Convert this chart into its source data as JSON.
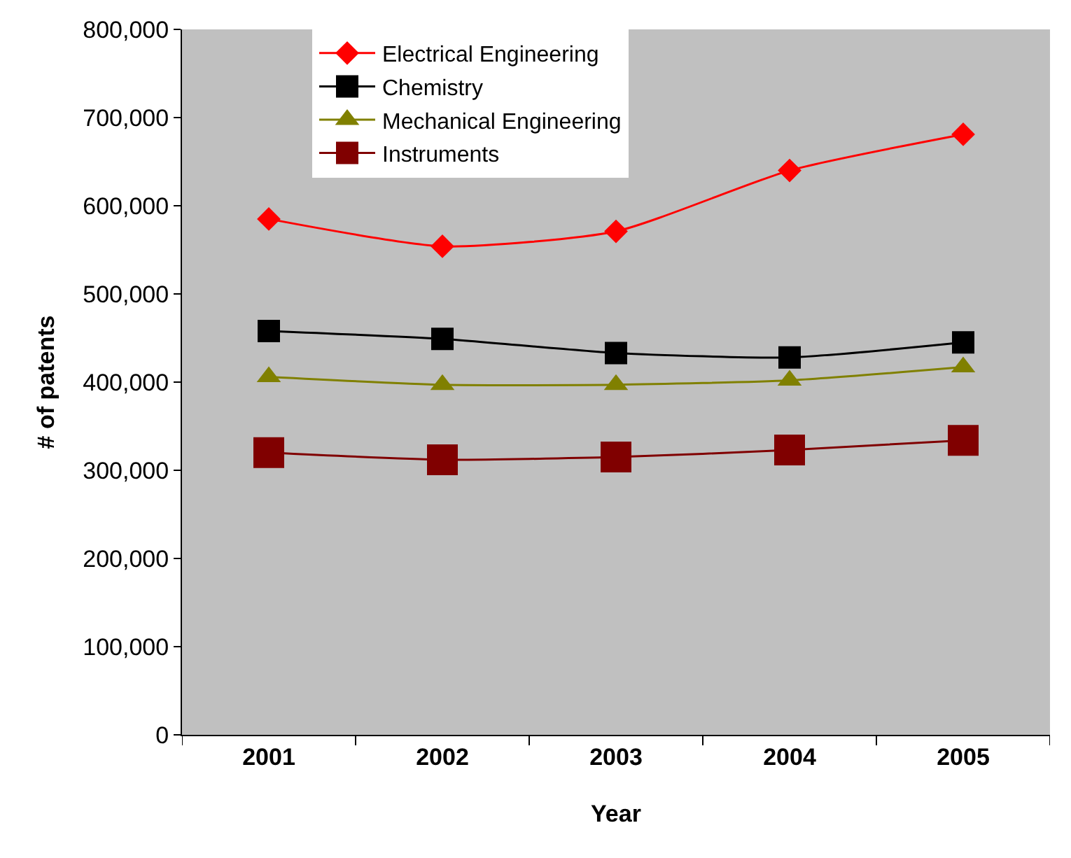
{
  "chart_data": {
    "type": "line",
    "xlabel": "Year",
    "ylabel": "# of patents",
    "categories": [
      "2001",
      "2002",
      "2003",
      "2004",
      "2005"
    ],
    "series": [
      {
        "name": "Electrical Engineering",
        "color": "#ff0000",
        "marker": "diamond",
        "values": [
          585000,
          554000,
          571000,
          640000,
          681000
        ]
      },
      {
        "name": "Chemistry",
        "color": "#000000",
        "marker": "square",
        "values": [
          458000,
          449000,
          433000,
          428000,
          445000
        ]
      },
      {
        "name": "Mechanical Engineering",
        "color": "#808000",
        "marker": "triangle",
        "values": [
          406000,
          397000,
          397000,
          402000,
          417000
        ]
      },
      {
        "name": "Instruments",
        "color": "#800000",
        "marker": "square",
        "values": [
          320000,
          312000,
          315000,
          323000,
          334000
        ]
      }
    ],
    "ylim": [
      0,
      800000
    ],
    "yticks": [
      {
        "value": 0,
        "label": "0"
      },
      {
        "value": 100000,
        "label": "100,000"
      },
      {
        "value": 200000,
        "label": "200,000"
      },
      {
        "value": 300000,
        "label": "300,000"
      },
      {
        "value": 400000,
        "label": "400,000"
      },
      {
        "value": 500000,
        "label": "500,000"
      },
      {
        "value": 600000,
        "label": "600,000"
      },
      {
        "value": 700000,
        "label": "700,000"
      },
      {
        "value": 800000,
        "label": "800,000"
      }
    ],
    "grid": false,
    "legend": "top left",
    "line_style": "solid"
  }
}
